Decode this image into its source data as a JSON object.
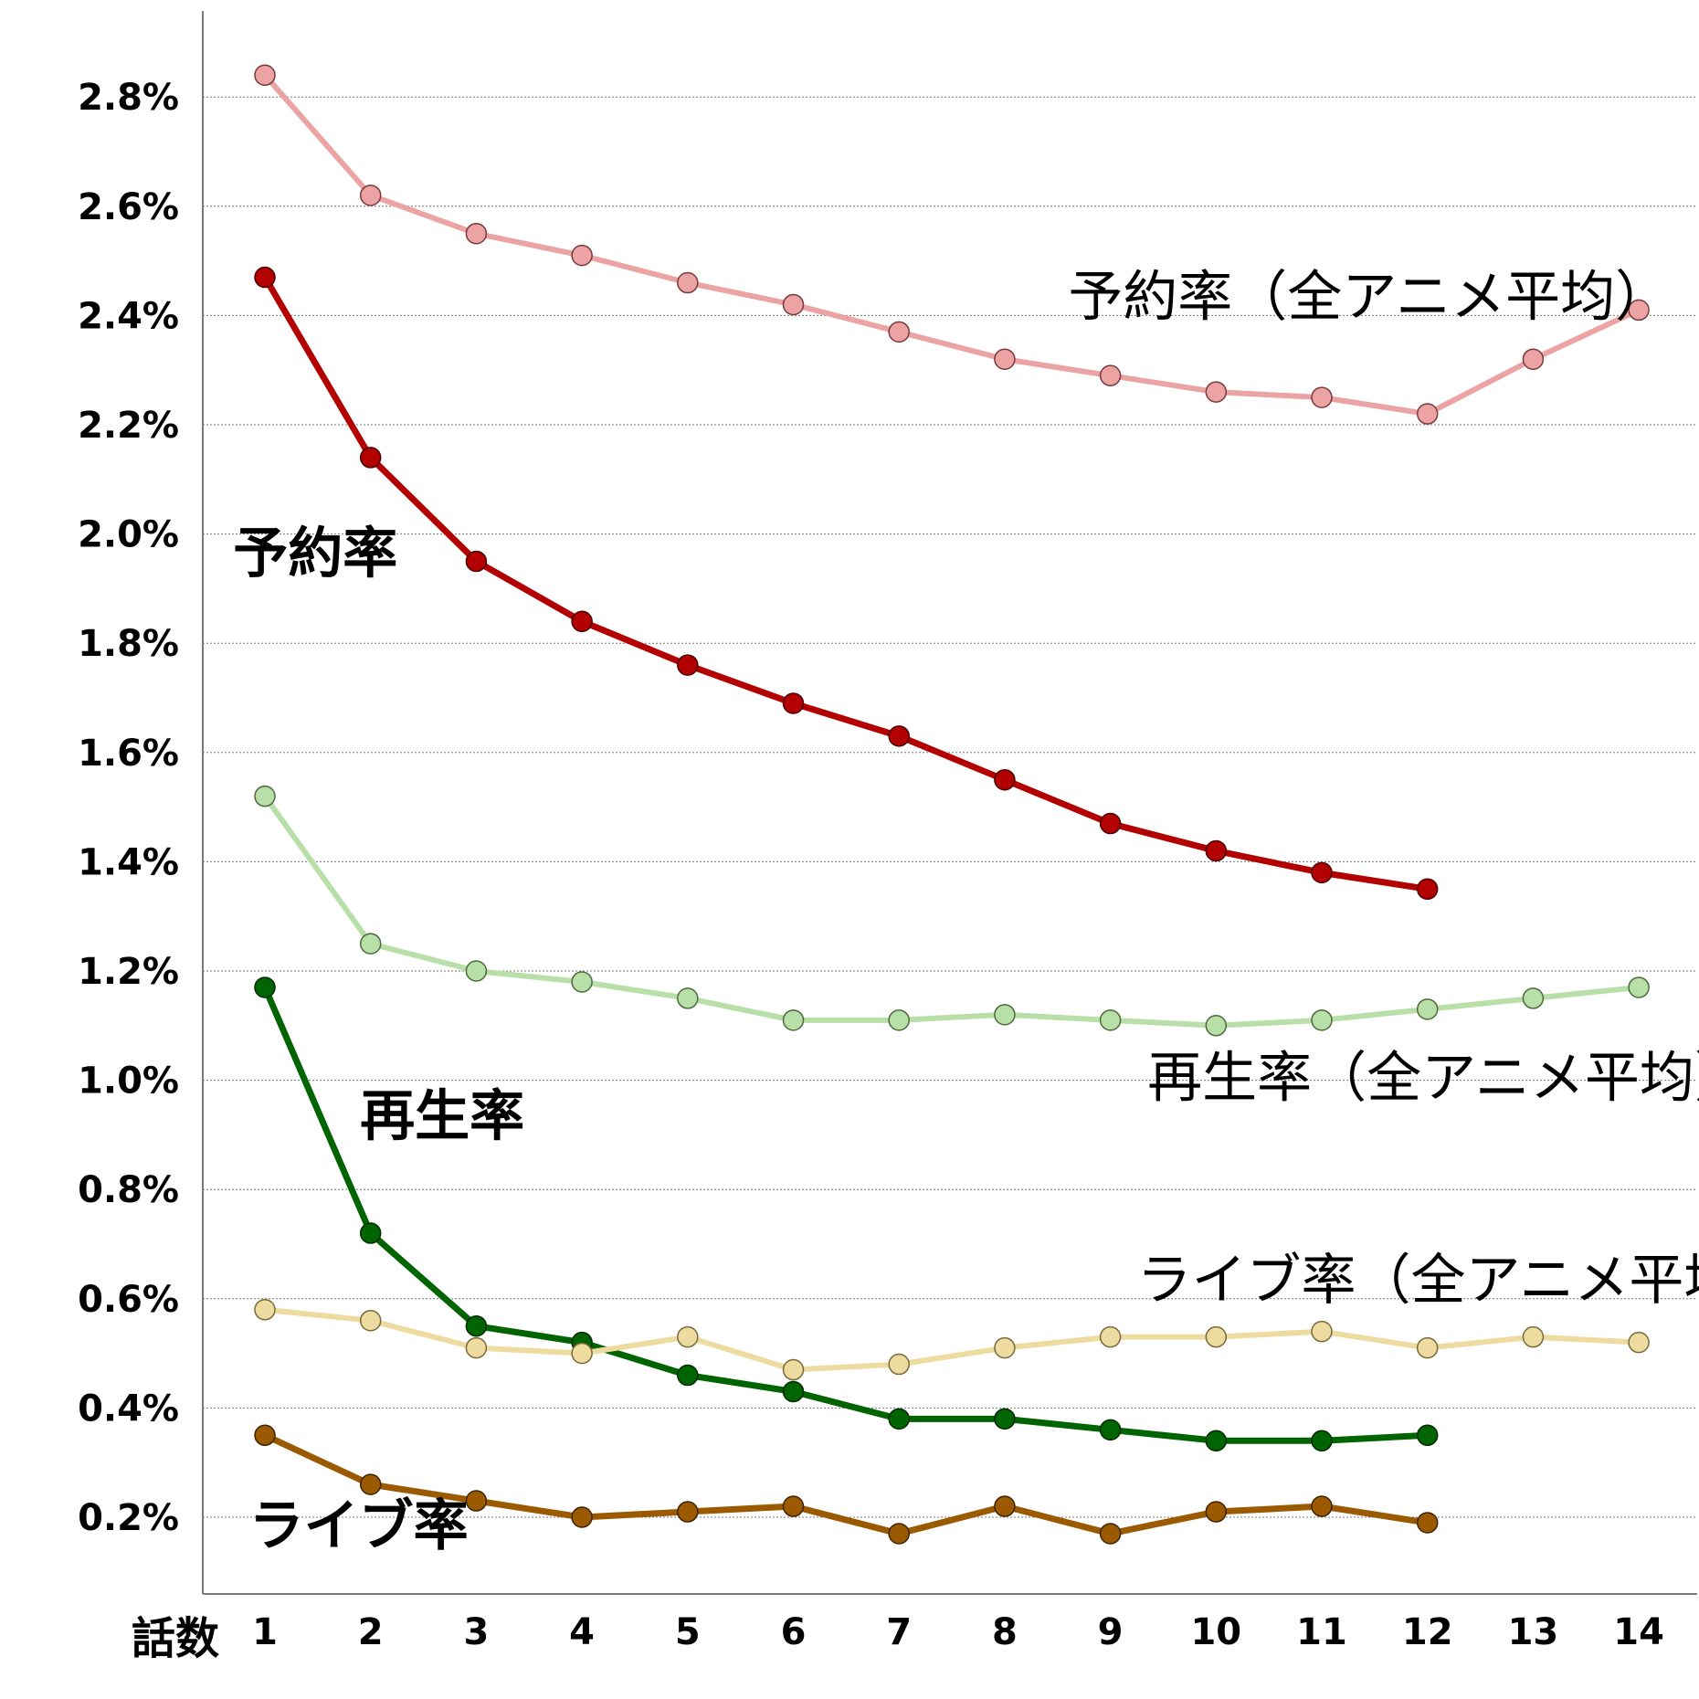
{
  "chart_data": {
    "type": "line",
    "xlabel": "話数",
    "x": [
      1,
      2,
      3,
      4,
      5,
      6,
      7,
      8,
      9,
      10,
      11,
      12,
      13,
      14
    ],
    "yticks": [
      "0.2%",
      "0.4%",
      "0.6%",
      "0.8%",
      "1.0%",
      "1.2%",
      "1.4%",
      "1.6%",
      "1.8%",
      "2.0%",
      "2.2%",
      "2.4%",
      "2.6%",
      "2.8%"
    ],
    "ylim": [
      0.06,
      2.96
    ],
    "grid": true,
    "series": [
      {
        "name": "予約率（全アニメ平均）",
        "color": "#eba3a3",
        "marker_edge": "#7a3a3a",
        "style": "light",
        "x": [
          1,
          2,
          3,
          4,
          5,
          6,
          7,
          8,
          9,
          10,
          11,
          12,
          13,
          14
        ],
        "values": [
          2.84,
          2.62,
          2.55,
          2.51,
          2.46,
          2.42,
          2.37,
          2.32,
          2.29,
          2.26,
          2.25,
          2.22,
          2.32,
          2.41
        ]
      },
      {
        "name": "予約率",
        "color": "#b30000",
        "marker_edge": "#4a0000",
        "style": "bold",
        "x": [
          1,
          2,
          3,
          4,
          5,
          6,
          7,
          8,
          9,
          10,
          11,
          12
        ],
        "values": [
          2.47,
          2.14,
          1.95,
          1.84,
          1.76,
          1.69,
          1.63,
          1.55,
          1.47,
          1.42,
          1.38,
          1.35
        ]
      },
      {
        "name": "再生率（全アニメ平均）",
        "color": "#b9dfa8",
        "marker_edge": "#4c6a3c",
        "style": "light",
        "x": [
          1,
          2,
          3,
          4,
          5,
          6,
          7,
          8,
          9,
          10,
          11,
          12,
          13,
          14
        ],
        "values": [
          1.52,
          1.25,
          1.2,
          1.18,
          1.15,
          1.11,
          1.11,
          1.12,
          1.11,
          1.1,
          1.11,
          1.13,
          1.15,
          1.17
        ]
      },
      {
        "name": "再生率",
        "color": "#006400",
        "marker_edge": "#002a00",
        "style": "bold",
        "x": [
          1,
          2,
          3,
          4,
          5,
          6,
          7,
          8,
          9,
          10,
          11,
          12
        ],
        "values": [
          1.17,
          0.72,
          0.55,
          0.52,
          0.46,
          0.43,
          0.38,
          0.38,
          0.36,
          0.34,
          0.34,
          0.35
        ]
      },
      {
        "name": "ライブ率（全アニメ平均）",
        "color": "#eddba0",
        "marker_edge": "#7a6a3a",
        "style": "light",
        "x": [
          1,
          2,
          3,
          4,
          5,
          6,
          7,
          8,
          9,
          10,
          11,
          12,
          13,
          14
        ],
        "values": [
          0.58,
          0.56,
          0.51,
          0.5,
          0.53,
          0.47,
          0.48,
          0.51,
          0.53,
          0.53,
          0.54,
          0.51,
          0.53,
          0.52
        ]
      },
      {
        "name": "ライブ率",
        "color": "#9c5a00",
        "marker_edge": "#3d2300",
        "style": "bold",
        "x": [
          1,
          2,
          3,
          4,
          5,
          6,
          7,
          8,
          9,
          10,
          11,
          12
        ],
        "values": [
          0.35,
          0.26,
          0.23,
          0.2,
          0.21,
          0.22,
          0.17,
          0.22,
          0.17,
          0.21,
          0.22,
          0.19
        ]
      }
    ],
    "annotations": [
      {
        "text": "予約率（全アニメ平均）",
        "style": "normal",
        "anchor_x": 8.6,
        "anchor_y": 2.4
      },
      {
        "text": "予約率",
        "style": "bold",
        "anchor_x": 0.7,
        "anchor_y": 1.93
      },
      {
        "text": "再生率（全アニメ平均）",
        "style": "normal",
        "anchor_x": 9.35,
        "anchor_y": 0.97
      },
      {
        "text": "再生率",
        "style": "bold",
        "anchor_x": 1.9,
        "anchor_y": 0.9
      },
      {
        "text": "ライブ率（全アニメ平均）",
        "style": "normal",
        "anchor_x": 9.25,
        "anchor_y": 0.6
      },
      {
        "text": "ライブ率",
        "style": "bold",
        "anchor_x": 0.85,
        "anchor_y": 0.15
      }
    ]
  }
}
